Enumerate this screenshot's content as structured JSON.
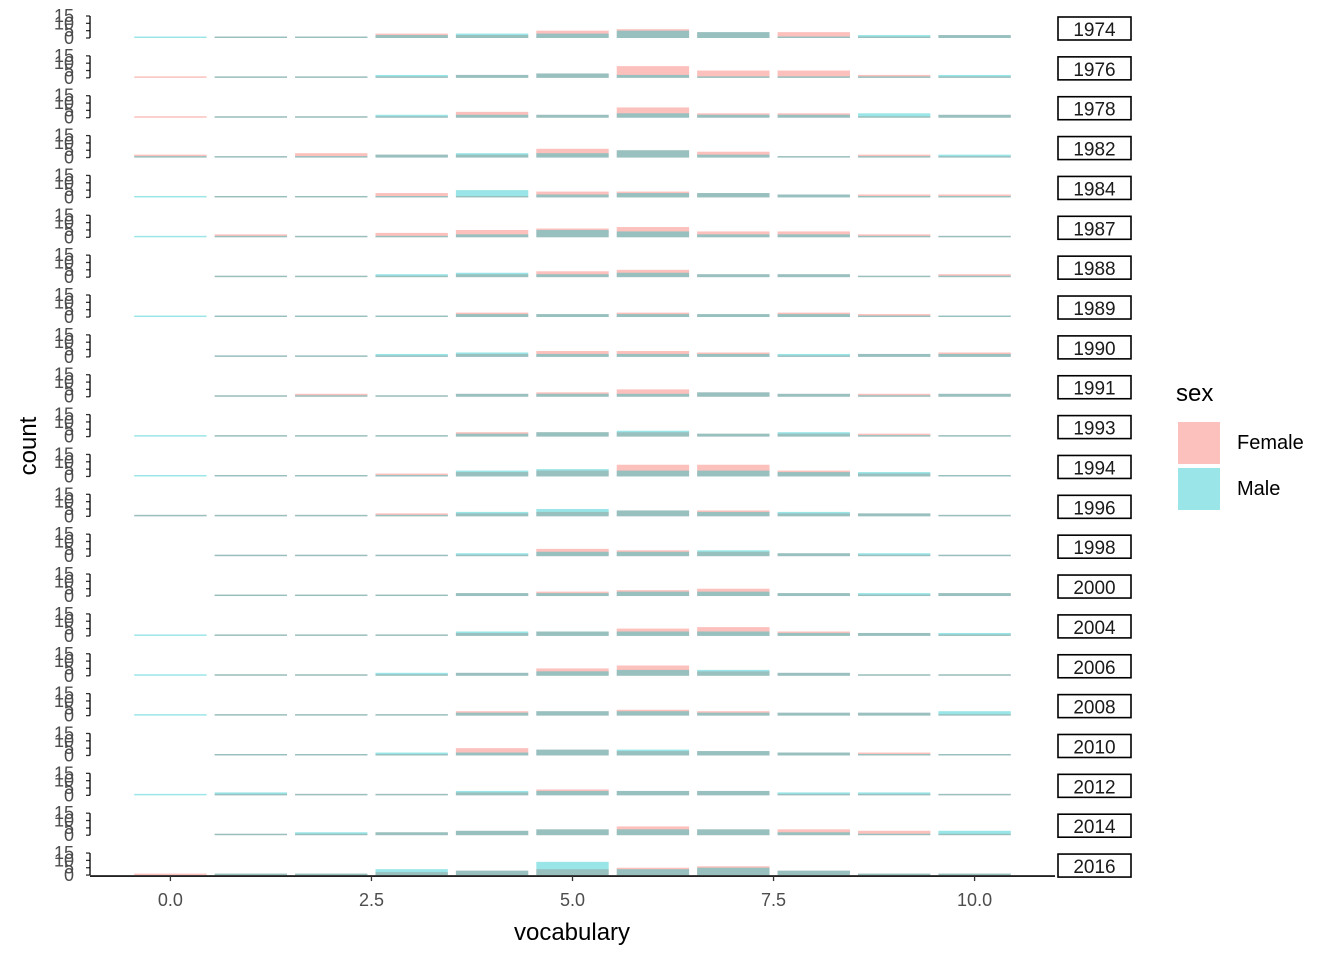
{
  "chart_data": {
    "type": "bar",
    "title": "",
    "xlabel": "vocabulary",
    "ylabel": "count",
    "x_ticks": [
      "0.0",
      "2.5",
      "5.0",
      "7.5",
      "10.0"
    ],
    "x_tick_values": [
      0,
      2.5,
      5,
      7.5,
      10
    ],
    "xlim": [
      -1,
      11
    ],
    "y_ticks": [
      "0",
      "5",
      "10",
      "15"
    ],
    "ylim": [
      0,
      15
    ],
    "grid": false,
    "legend": {
      "title": "sex",
      "placement": "right",
      "entries": [
        "Female",
        "Male"
      ]
    },
    "series_colors": {
      "Female": "#F8766D",
      "Male": "#00BFC4"
    },
    "x": [
      0,
      1,
      2,
      3,
      4,
      5,
      6,
      7,
      8,
      9,
      10
    ],
    "facets": [
      {
        "label": "1974",
        "female": [
          0,
          1,
          1,
          3,
          2,
          5,
          6,
          4,
          4,
          1,
          2
        ],
        "male": [
          1,
          1,
          1,
          2,
          3,
          3,
          5,
          4,
          1,
          2,
          2
        ]
      },
      {
        "label": "1976",
        "female": [
          1,
          1,
          1,
          1,
          2,
          3,
          8,
          5,
          5,
          2,
          1
        ],
        "male": [
          0,
          1,
          1,
          2,
          2,
          3,
          2,
          1,
          1,
          1,
          2
        ]
      },
      {
        "label": "1978",
        "female": [
          1,
          1,
          1,
          1,
          4,
          2,
          7,
          3,
          3,
          1,
          2
        ],
        "male": [
          0,
          1,
          1,
          2,
          2,
          2,
          3,
          2,
          2,
          3,
          2
        ]
      },
      {
        "label": "1982",
        "female": [
          2,
          1,
          3,
          2,
          2,
          6,
          5,
          4,
          1,
          2,
          1
        ],
        "male": [
          1,
          1,
          1,
          2,
          3,
          3,
          5,
          2,
          1,
          1,
          2
        ]
      },
      {
        "label": "1984",
        "female": [
          0,
          1,
          1,
          3,
          1,
          4,
          4,
          3,
          2,
          2,
          2
        ],
        "male": [
          1,
          1,
          1,
          1,
          5,
          2,
          3,
          3,
          2,
          1,
          1
        ]
      },
      {
        "label": "1987",
        "female": [
          0,
          2,
          1,
          3,
          5,
          6,
          7,
          4,
          4,
          2,
          1
        ],
        "male": [
          1,
          1,
          1,
          1,
          2,
          5,
          4,
          2,
          2,
          1,
          1
        ]
      },
      {
        "label": "1988",
        "female": [
          0,
          1,
          1,
          1,
          2,
          4,
          5,
          2,
          2,
          1,
          2
        ],
        "male": [
          0,
          1,
          1,
          2,
          3,
          2,
          3,
          2,
          2,
          1,
          1
        ]
      },
      {
        "label": "1989",
        "female": [
          0,
          1,
          1,
          1,
          3,
          2,
          3,
          2,
          3,
          2,
          1
        ],
        "male": [
          1,
          1,
          1,
          1,
          2,
          2,
          2,
          2,
          2,
          1,
          1
        ]
      },
      {
        "label": "1990",
        "female": [
          0,
          1,
          1,
          1,
          2,
          4,
          4,
          3,
          1,
          2,
          3
        ],
        "male": [
          0,
          1,
          1,
          2,
          3,
          2,
          2,
          2,
          2,
          2,
          2
        ]
      },
      {
        "label": "1991",
        "female": [
          0,
          1,
          2,
          1,
          2,
          3,
          5,
          3,
          2,
          2,
          2
        ],
        "male": [
          0,
          1,
          1,
          1,
          2,
          2,
          2,
          3,
          2,
          1,
          2
        ]
      },
      {
        "label": "1993",
        "female": [
          0,
          1,
          1,
          1,
          3,
          3,
          3,
          2,
          2,
          2,
          1
        ],
        "male": [
          1,
          1,
          1,
          1,
          2,
          3,
          4,
          2,
          3,
          1,
          1
        ]
      },
      {
        "label": "1994",
        "female": [
          0,
          1,
          1,
          2,
          3,
          4,
          8,
          8,
          4,
          2,
          1
        ],
        "male": [
          1,
          1,
          1,
          1,
          4,
          5,
          4,
          4,
          3,
          3,
          1
        ]
      },
      {
        "label": "1996",
        "female": [
          1,
          1,
          1,
          2,
          2,
          3,
          4,
          4,
          2,
          2,
          1
        ],
        "male": [
          1,
          1,
          1,
          1,
          3,
          5,
          4,
          3,
          3,
          2,
          1
        ]
      },
      {
        "label": "1998",
        "female": [
          0,
          1,
          1,
          1,
          1,
          5,
          4,
          3,
          2,
          1,
          1
        ],
        "male": [
          0,
          1,
          1,
          1,
          2,
          3,
          3,
          4,
          2,
          2,
          1
        ]
      },
      {
        "label": "2000",
        "female": [
          0,
          1,
          1,
          1,
          2,
          3,
          4,
          5,
          2,
          1,
          2
        ],
        "male": [
          0,
          1,
          1,
          1,
          2,
          2,
          3,
          3,
          2,
          2,
          2
        ]
      },
      {
        "label": "2004",
        "female": [
          0,
          1,
          1,
          1,
          2,
          3,
          5,
          6,
          3,
          2,
          1
        ],
        "male": [
          1,
          1,
          1,
          1,
          3,
          3,
          3,
          3,
          2,
          2,
          2
        ]
      },
      {
        "label": "2006",
        "female": [
          0,
          1,
          1,
          1,
          2,
          5,
          7,
          3,
          2,
          1,
          1
        ],
        "male": [
          1,
          1,
          1,
          2,
          2,
          3,
          4,
          4,
          2,
          1,
          1
        ]
      },
      {
        "label": "2008",
        "female": [
          0,
          1,
          1,
          1,
          3,
          3,
          4,
          3,
          2,
          2,
          1
        ],
        "male": [
          1,
          1,
          1,
          1,
          2,
          3,
          3,
          2,
          2,
          2,
          3
        ]
      },
      {
        "label": "2010",
        "female": [
          0,
          1,
          1,
          1,
          5,
          4,
          3,
          3,
          2,
          2,
          1
        ],
        "male": [
          0,
          1,
          1,
          2,
          2,
          4,
          4,
          3,
          2,
          1,
          1
        ]
      },
      {
        "label": "2012",
        "female": [
          0,
          1,
          1,
          1,
          2,
          4,
          3,
          3,
          1,
          1,
          1
        ],
        "male": [
          1,
          2,
          1,
          1,
          3,
          3,
          3,
          3,
          2,
          2,
          1
        ]
      },
      {
        "label": "2014",
        "female": [
          0,
          1,
          1,
          2,
          3,
          4,
          6,
          4,
          4,
          3,
          1
        ],
        "male": [
          0,
          1,
          2,
          2,
          3,
          4,
          4,
          4,
          2,
          1,
          3
        ]
      },
      {
        "label": "2016",
        "female": [
          1,
          1,
          1,
          2,
          3,
          4,
          5,
          6,
          3,
          1,
          1
        ],
        "male": [
          0,
          1,
          1,
          4,
          3,
          9,
          4,
          5,
          3,
          1,
          1
        ]
      }
    ]
  }
}
